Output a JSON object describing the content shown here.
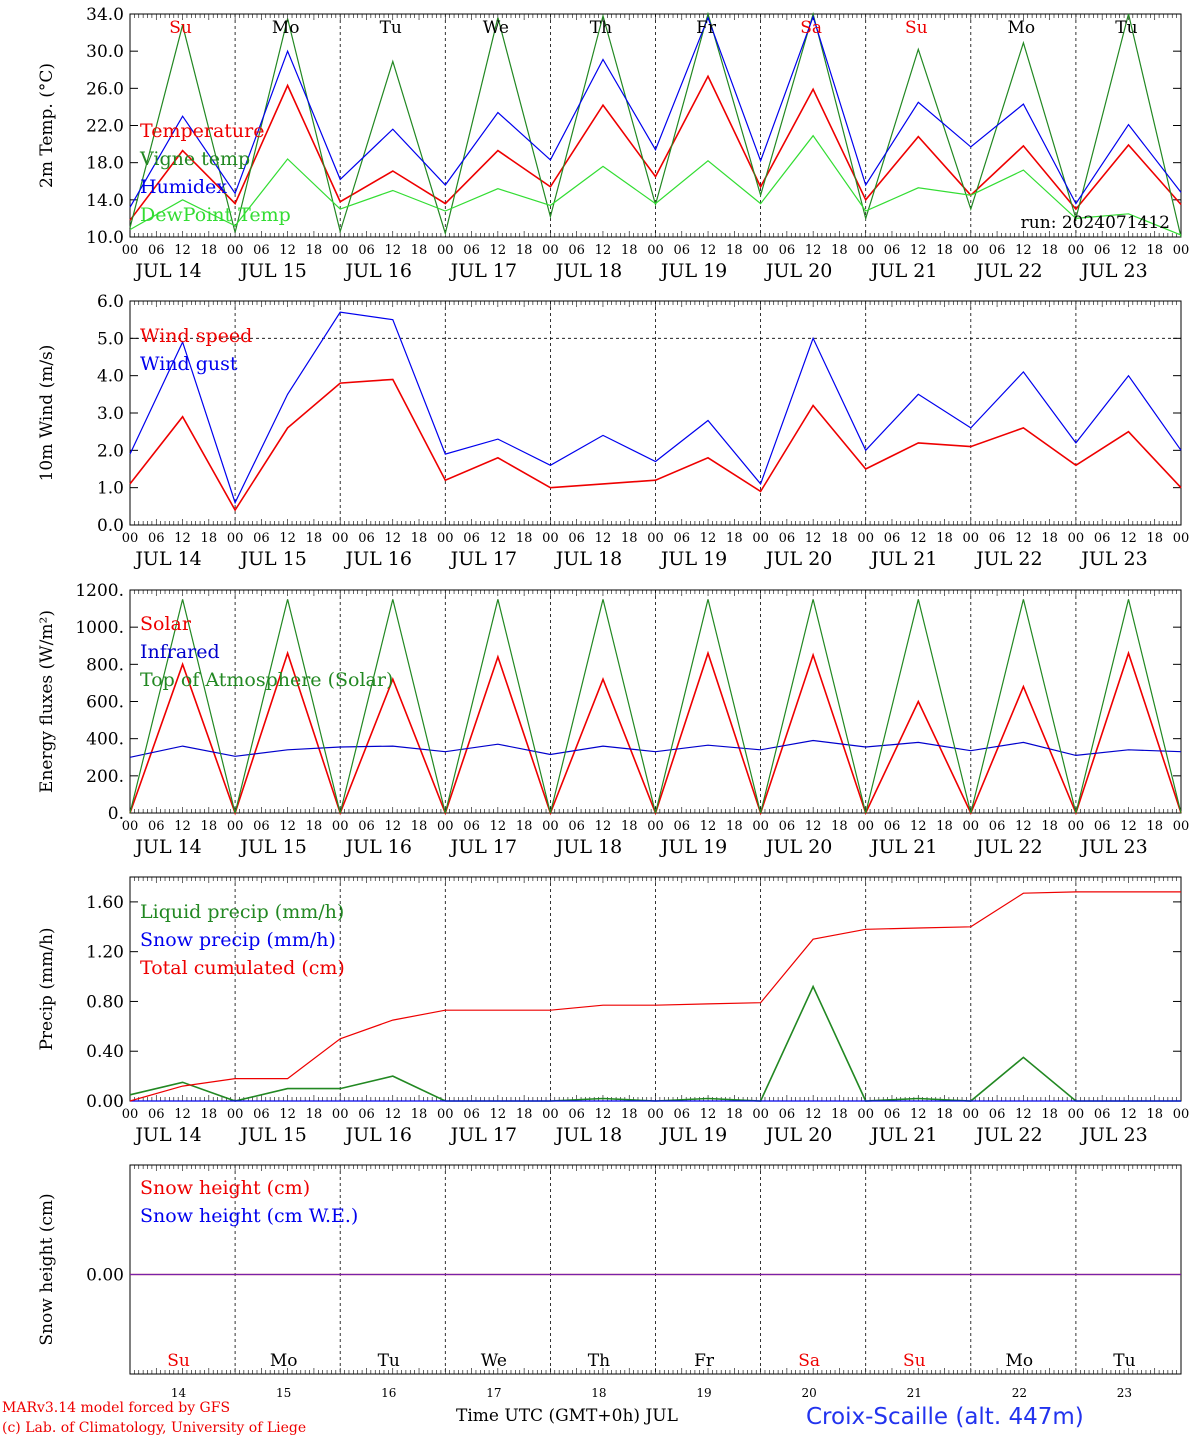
{
  "chart_data": [
    {
      "type": "line",
      "ylabel": "2m Temp. (°C)",
      "ylim": [
        10.0,
        34.0
      ],
      "yticks": [
        "10.0",
        "14.0",
        "18.0",
        "22.0",
        "26.0",
        "30.0",
        "34.0"
      ],
      "hour_ticks": [
        "00",
        "06",
        "12",
        "18"
      ],
      "date_labels": [
        "JUL 14",
        "JUL 15",
        "JUL 16",
        "JUL 17",
        "JUL 18",
        "JUL 19",
        "JUL 20",
        "JUL 21",
        "JUL 22",
        "JUL 23"
      ],
      "weekday_labels": [
        "Su",
        "Mo",
        "Tu",
        "We",
        "Th",
        "Fr",
        "Sa",
        "Su",
        "Mo",
        "Tu"
      ],
      "annotation": "run: 2024071412",
      "legend": [
        "Temperature",
        "Vigne temp",
        "Humidex",
        "DewPoint Temp"
      ],
      "x_hours": [
        0,
        12,
        24,
        36,
        48,
        60,
        72,
        84,
        96,
        108,
        120,
        132,
        144,
        156,
        168,
        180,
        192,
        204,
        216,
        228,
        240
      ],
      "series": [
        {
          "name": "Temperature",
          "color": "#ee0000",
          "values": [
            11.8,
            19.3,
            13.6,
            26.3,
            13.8,
            17.1,
            13.6,
            19.3,
            15.4,
            24.2,
            16.5,
            27.3,
            15.4,
            25.9,
            14.0,
            20.8,
            14.5,
            19.8,
            13.0,
            19.9,
            13.5
          ]
        },
        {
          "name": "Vigne temp",
          "color": "#228822",
          "values": [
            11.0,
            32.8,
            10.5,
            33.5,
            10.6,
            28.9,
            10.4,
            33.6,
            12.2,
            33.8,
            13.5,
            34.0,
            14.5,
            34.0,
            12.0,
            30.2,
            13.0,
            30.9,
            12.0,
            34.0,
            10.0
          ]
        },
        {
          "name": "Humidex",
          "color": "#0000ee",
          "values": [
            13.2,
            23.0,
            14.7,
            30.0,
            16.2,
            21.6,
            15.6,
            23.4,
            18.3,
            29.1,
            19.4,
            33.6,
            18.2,
            33.7,
            15.6,
            24.5,
            19.7,
            24.3,
            13.6,
            22.1,
            14.8
          ]
        },
        {
          "name": "DewPoint Temp",
          "color": "#33dd33",
          "values": [
            10.8,
            14.0,
            11.2,
            18.4,
            13.0,
            15.0,
            12.8,
            15.2,
            13.4,
            17.6,
            13.6,
            18.2,
            13.6,
            20.9,
            12.8,
            15.3,
            14.5,
            17.2,
            12.0,
            12.5,
            10.2
          ]
        }
      ]
    },
    {
      "type": "line",
      "ylabel": "10m Wind (m/s)",
      "ylim": [
        0.0,
        6.0
      ],
      "yticks": [
        "0.0",
        "1.0",
        "2.0",
        "3.0",
        "4.0",
        "5.0",
        "6.0"
      ],
      "hour_ticks": [
        "00",
        "06",
        "12",
        "18"
      ],
      "date_labels": [
        "JUL 14",
        "JUL 15",
        "JUL 16",
        "JUL 17",
        "JUL 18",
        "JUL 19",
        "JUL 20",
        "JUL 21",
        "JUL 22",
        "JUL 23"
      ],
      "reference_line": 5.0,
      "legend": [
        "Wind speed",
        "Wind gust"
      ],
      "x_hours": [
        0,
        12,
        24,
        36,
        48,
        60,
        72,
        84,
        96,
        108,
        120,
        132,
        144,
        156,
        168,
        180,
        192,
        204,
        216,
        228,
        240
      ],
      "series": [
        {
          "name": "Wind speed",
          "color": "#ee0000",
          "values": [
            1.1,
            2.9,
            0.4,
            2.6,
            3.8,
            3.9,
            1.2,
            1.8,
            1.0,
            1.1,
            1.2,
            1.8,
            0.9,
            3.2,
            1.5,
            2.2,
            2.1,
            2.6,
            1.6,
            2.5,
            1.0
          ]
        },
        {
          "name": "Wind gust",
          "color": "#0000ee",
          "values": [
            1.9,
            4.9,
            0.6,
            3.5,
            5.7,
            5.5,
            1.9,
            2.3,
            1.6,
            2.4,
            1.7,
            2.8,
            1.1,
            5.0,
            2.0,
            3.5,
            2.6,
            4.1,
            2.2,
            4.0,
            2.0
          ]
        }
      ]
    },
    {
      "type": "line",
      "ylabel": "Energy fluxes (W/m²)",
      "ylim": [
        0,
        1200
      ],
      "yticks": [
        "0.",
        "200.",
        "400.",
        "600.",
        "800.",
        "1000.",
        "1200."
      ],
      "hour_ticks": [
        "00",
        "06",
        "12",
        "18"
      ],
      "date_labels": [
        "JUL 14",
        "JUL 15",
        "JUL 16",
        "JUL 17",
        "JUL 18",
        "JUL 19",
        "JUL 20",
        "JUL 21",
        "JUL 22",
        "JUL 23"
      ],
      "legend": [
        "Solar",
        "Infrared",
        "Top of Atmosphere (Solar)"
      ],
      "x_hours": [
        0,
        12,
        24,
        36,
        48,
        60,
        72,
        84,
        96,
        108,
        120,
        132,
        144,
        156,
        168,
        180,
        192,
        204,
        216,
        228,
        240
      ],
      "series": [
        {
          "name": "Solar",
          "color": "#ee0000",
          "values": [
            0,
            800,
            0,
            860,
            0,
            720,
            0,
            840,
            0,
            720,
            0,
            860,
            0,
            850,
            0,
            600,
            0,
            680,
            0,
            860,
            0
          ]
        },
        {
          "name": "Infrared",
          "color": "#0000cc",
          "values": [
            300,
            360,
            305,
            340,
            355,
            360,
            330,
            370,
            315,
            360,
            330,
            365,
            340,
            390,
            355,
            380,
            335,
            380,
            310,
            340,
            330
          ]
        },
        {
          "name": "Top of Atmosphere (Solar)",
          "color": "#228822",
          "values": [
            0,
            1150,
            0,
            1150,
            0,
            1150,
            0,
            1150,
            0,
            1150,
            0,
            1150,
            0,
            1150,
            0,
            1150,
            0,
            1150,
            0,
            1150,
            0
          ]
        }
      ]
    },
    {
      "type": "line",
      "ylabel": "Precip (mm/h)",
      "ylim": [
        0.0,
        1.8
      ],
      "yticks": [
        "0.00",
        "0.40",
        "0.80",
        "1.20",
        "1.60"
      ],
      "hour_ticks": [
        "00",
        "06",
        "12",
        "18"
      ],
      "date_labels": [
        "JUL 14",
        "JUL 15",
        "JUL 16",
        "JUL 17",
        "JUL 18",
        "JUL 19",
        "JUL 20",
        "JUL 21",
        "JUL 22",
        "JUL 23"
      ],
      "legend": [
        "Liquid precip (mm/h)",
        "Snow precip (mm/h)",
        "Total cumulated (cm)"
      ],
      "x_hours": [
        0,
        12,
        24,
        36,
        48,
        60,
        72,
        84,
        96,
        108,
        120,
        132,
        144,
        156,
        168,
        180,
        192,
        204,
        216,
        228,
        240
      ],
      "series": [
        {
          "name": "Liquid precip (mm/h)",
          "color": "#228822",
          "values": [
            0.05,
            0.15,
            0.0,
            0.1,
            0.1,
            0.2,
            0.0,
            0.0,
            0.0,
            0.02,
            0.0,
            0.02,
            0.0,
            0.92,
            0.0,
            0.02,
            0.0,
            0.35,
            0.0,
            0.0,
            0.0
          ]
        },
        {
          "name": "Snow precip (mm/h)",
          "color": "#0000ee",
          "values": [
            0,
            0,
            0,
            0,
            0,
            0,
            0,
            0,
            0,
            0,
            0,
            0,
            0,
            0,
            0,
            0,
            0,
            0,
            0,
            0,
            0
          ]
        },
        {
          "name": "Total cumulated (cm)",
          "color": "#ee0000",
          "values": [
            0.0,
            0.12,
            0.18,
            0.18,
            0.5,
            0.65,
            0.73,
            0.73,
            0.73,
            0.77,
            0.77,
            0.78,
            0.79,
            1.3,
            1.38,
            1.39,
            1.4,
            1.67,
            1.68,
            1.68,
            1.68
          ]
        }
      ]
    },
    {
      "type": "line",
      "ylabel": "Snow height (cm)",
      "yticks": [
        "0.00"
      ],
      "legend": [
        "Snow height (cm)",
        "Snow height (cm W.E.)"
      ],
      "weekday_labels": [
        "Su",
        "Mo",
        "Tu",
        "We",
        "Th",
        "Fr",
        "Sa",
        "Su",
        "Mo",
        "Tu"
      ],
      "day_numbers": [
        "14",
        "15",
        "16",
        "17",
        "18",
        "19",
        "20",
        "21",
        "22",
        "23"
      ],
      "x_hours": [
        0,
        240
      ],
      "series": [
        {
          "name": "Snow height (cm)",
          "color": "#ee0000",
          "values": [
            0,
            0
          ]
        },
        {
          "name": "Snow height (cm W.E.)",
          "color": "#0000ee",
          "values": [
            0,
            0
          ]
        }
      ]
    }
  ],
  "footer": {
    "model": "MARv3.14 model forced by GFS",
    "credit": "(c) Lab. of Climatology, University of Liege",
    "xlabel": "Time UTC (GMT+0h) JUL",
    "station": "Croix-Scaille (alt. 447m)"
  },
  "colors": {
    "red": "#ee0000",
    "green": "#228822",
    "blue": "#0000ee",
    "lightgreen": "#33dd33",
    "weekend": "#ee0000",
    "weekday": "#000000"
  }
}
